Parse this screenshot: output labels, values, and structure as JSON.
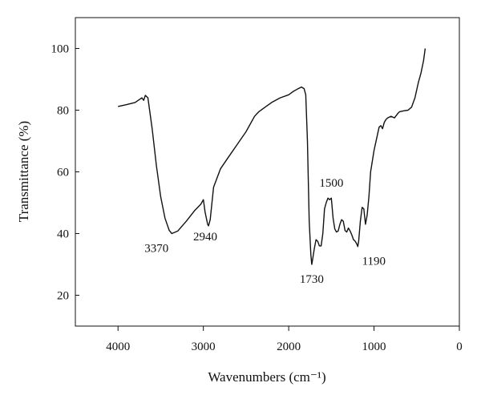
{
  "chart_data": {
    "type": "line",
    "title": "",
    "xlabel": "Wavenumbers (cm⁻¹)",
    "ylabel": "Transmittance (%)",
    "xlim": [
      4500,
      0
    ],
    "ylim": [
      10,
      110
    ],
    "x_reversed": true,
    "grid": false,
    "legend": "none",
    "x_ticks": [
      4000,
      3000,
      2000,
      1000,
      0
    ],
    "x_tick_labels": [
      "4000",
      "3000",
      "2000",
      "1000",
      "0"
    ],
    "y_ticks": [
      20,
      40,
      60,
      80,
      100
    ],
    "y_tick_labels": [
      "20",
      "40",
      "60",
      "80",
      "100"
    ],
    "series": [
      {
        "x": [
          4000,
          3900,
          3800,
          3720,
          3700,
          3680,
          3650,
          3600,
          3550,
          3500,
          3450,
          3400,
          3370,
          3300,
          3200,
          3100,
          3030,
          3000,
          2980,
          2950,
          2940,
          2920,
          2880,
          2800,
          2700,
          2600,
          2500,
          2400,
          2350,
          2300,
          2200,
          2100,
          2000,
          1950,
          1900,
          1850,
          1820,
          1800,
          1780,
          1760,
          1740,
          1730,
          1720,
          1700,
          1680,
          1660,
          1640,
          1620,
          1600,
          1580,
          1560,
          1540,
          1520,
          1500,
          1480,
          1460,
          1440,
          1420,
          1400,
          1380,
          1360,
          1340,
          1320,
          1300,
          1280,
          1260,
          1240,
          1220,
          1200,
          1190,
          1180,
          1160,
          1140,
          1120,
          1100,
          1080,
          1060,
          1040,
          1000,
          960,
          940,
          920,
          900,
          880,
          860,
          840,
          800,
          760,
          720,
          700,
          650,
          600,
          560,
          520,
          480,
          450,
          420,
          400
        ],
        "y": [
          81.2,
          81.8,
          82.5,
          84.0,
          83.2,
          84.8,
          84.0,
          74.0,
          62.0,
          52.0,
          45.0,
          41.0,
          40.0,
          40.8,
          44.0,
          47.5,
          49.5,
          51.0,
          47.0,
          43.0,
          42.5,
          44.5,
          55.0,
          61.0,
          65.0,
          69.0,
          73.0,
          78.0,
          79.5,
          80.5,
          82.5,
          84.0,
          85.0,
          86.0,
          86.8,
          87.5,
          87.0,
          85.0,
          70.0,
          44.0,
          33.0,
          30.0,
          31.5,
          35.0,
          38.0,
          37.5,
          36.0,
          36.0,
          40.0,
          48.0,
          50.0,
          51.5,
          51.0,
          51.5,
          45.0,
          41.5,
          40.5,
          40.8,
          43.0,
          44.5,
          44.0,
          41.0,
          40.5,
          41.8,
          40.8,
          39.5,
          38.0,
          37.5,
          36.5,
          35.8,
          37.5,
          44.0,
          48.5,
          48.0,
          43.0,
          46.0,
          52.0,
          60.0,
          67.0,
          72.0,
          74.5,
          75.0,
          74.0,
          76.0,
          77.0,
          77.5,
          78.0,
          77.5,
          79.0,
          79.5,
          79.8,
          80.0,
          81.0,
          84.0,
          89.0,
          92.0,
          96.0,
          100.0
        ]
      }
    ],
    "annotations": [
      {
        "text": "3370",
        "x": 3370,
        "y": 40
      },
      {
        "text": "2940",
        "x": 2940,
        "y": 42.5
      },
      {
        "text": "1730",
        "x": 1730,
        "y": 30
      },
      {
        "text": "1500",
        "x": 1500,
        "y": 51.5
      },
      {
        "text": "1190",
        "x": 1190,
        "y": 35.8
      }
    ]
  }
}
